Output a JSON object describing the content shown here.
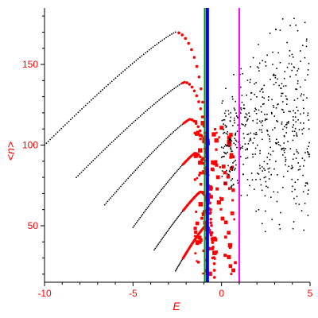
{
  "chart_data": {
    "type": "scatter",
    "xlabel": "E",
    "ylabel": "<n>",
    "xlim": [
      -10,
      5
    ],
    "ylim": [
      15,
      185
    ],
    "x_ticks": [
      -10,
      -5,
      0,
      5
    ],
    "x_tick_labels": [
      "-10",
      "-5",
      "0",
      "5"
    ],
    "y_ticks": [
      50,
      100,
      150
    ],
    "y_tick_labels": [
      "50",
      "100",
      "150"
    ],
    "grid": false,
    "legend": "none",
    "colors": {
      "axis_text": "#ff0000",
      "branch_points": "#000000",
      "highlighted_points": "#ff0000",
      "cloud_points": "#000000",
      "green_line": "#00a000",
      "blue_line": "#0000ff",
      "magenta_line": "#ff00ff"
    },
    "vertical_lines": [
      {
        "x": -0.95,
        "color": "green"
      },
      {
        "x": -0.8,
        "color": "blue"
      },
      {
        "x": 1.0,
        "color": "magenta"
      }
    ],
    "branches": [
      {
        "start": [
          -10.0,
          100
        ],
        "peak": [
          -2.6,
          170
        ],
        "end": [
          -0.9,
          85
        ]
      },
      {
        "start": [
          -8.2,
          80
        ],
        "peak": [
          -2.1,
          139
        ],
        "end": [
          -0.8,
          73
        ]
      },
      {
        "start": [
          -6.6,
          63
        ],
        "peak": [
          -1.8,
          116
        ],
        "end": [
          -0.7,
          60
        ]
      },
      {
        "start": [
          -5.0,
          49
        ],
        "peak": [
          -1.5,
          95
        ],
        "end": [
          -0.6,
          45
        ]
      },
      {
        "start": [
          -3.8,
          35
        ],
        "peak": [
          -1.2,
          71
        ],
        "end": [
          -0.5,
          30
        ]
      },
      {
        "start": [
          -2.6,
          22
        ],
        "peak": [
          -0.9,
          50
        ],
        "end": [
          -0.4,
          18
        ]
      }
    ],
    "red_cluster": {
      "x_range": [
        -1.5,
        0.8
      ],
      "y_range": [
        20,
        115
      ]
    },
    "scatter_cloud": {
      "x_range": [
        0.0,
        5.0
      ],
      "y_range": [
        45,
        185
      ]
    }
  }
}
